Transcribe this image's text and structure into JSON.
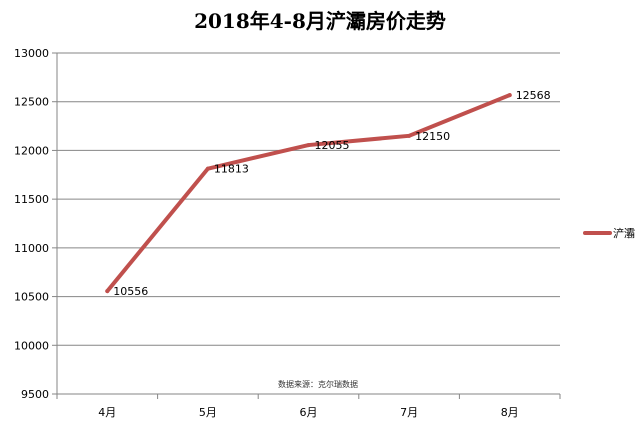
{
  "chart_data": {
    "type": "line",
    "title": "2018年4-8月浐灞房价走势",
    "categories": [
      "4月",
      "5月",
      "6月",
      "7月",
      "8月"
    ],
    "series": [
      {
        "name": "浐灞",
        "values": [
          10556,
          11813,
          12055,
          12150,
          12568
        ],
        "color": "#c0504d"
      }
    ],
    "data_labels": [
      "10556",
      "11813",
      "12055",
      "12150",
      "12568"
    ],
    "y_ticks": [
      9500,
      10000,
      10500,
      11000,
      11500,
      12000,
      12500,
      13000
    ],
    "y_tick_labels": [
      "9500",
      "10000",
      "10500",
      "11000",
      "11500",
      "12000",
      "12500",
      "13000"
    ],
    "ylim": [
      9500,
      13000
    ],
    "grid": true,
    "legend_position": "right",
    "source_note": "数据来源：克尔瑞数据"
  }
}
